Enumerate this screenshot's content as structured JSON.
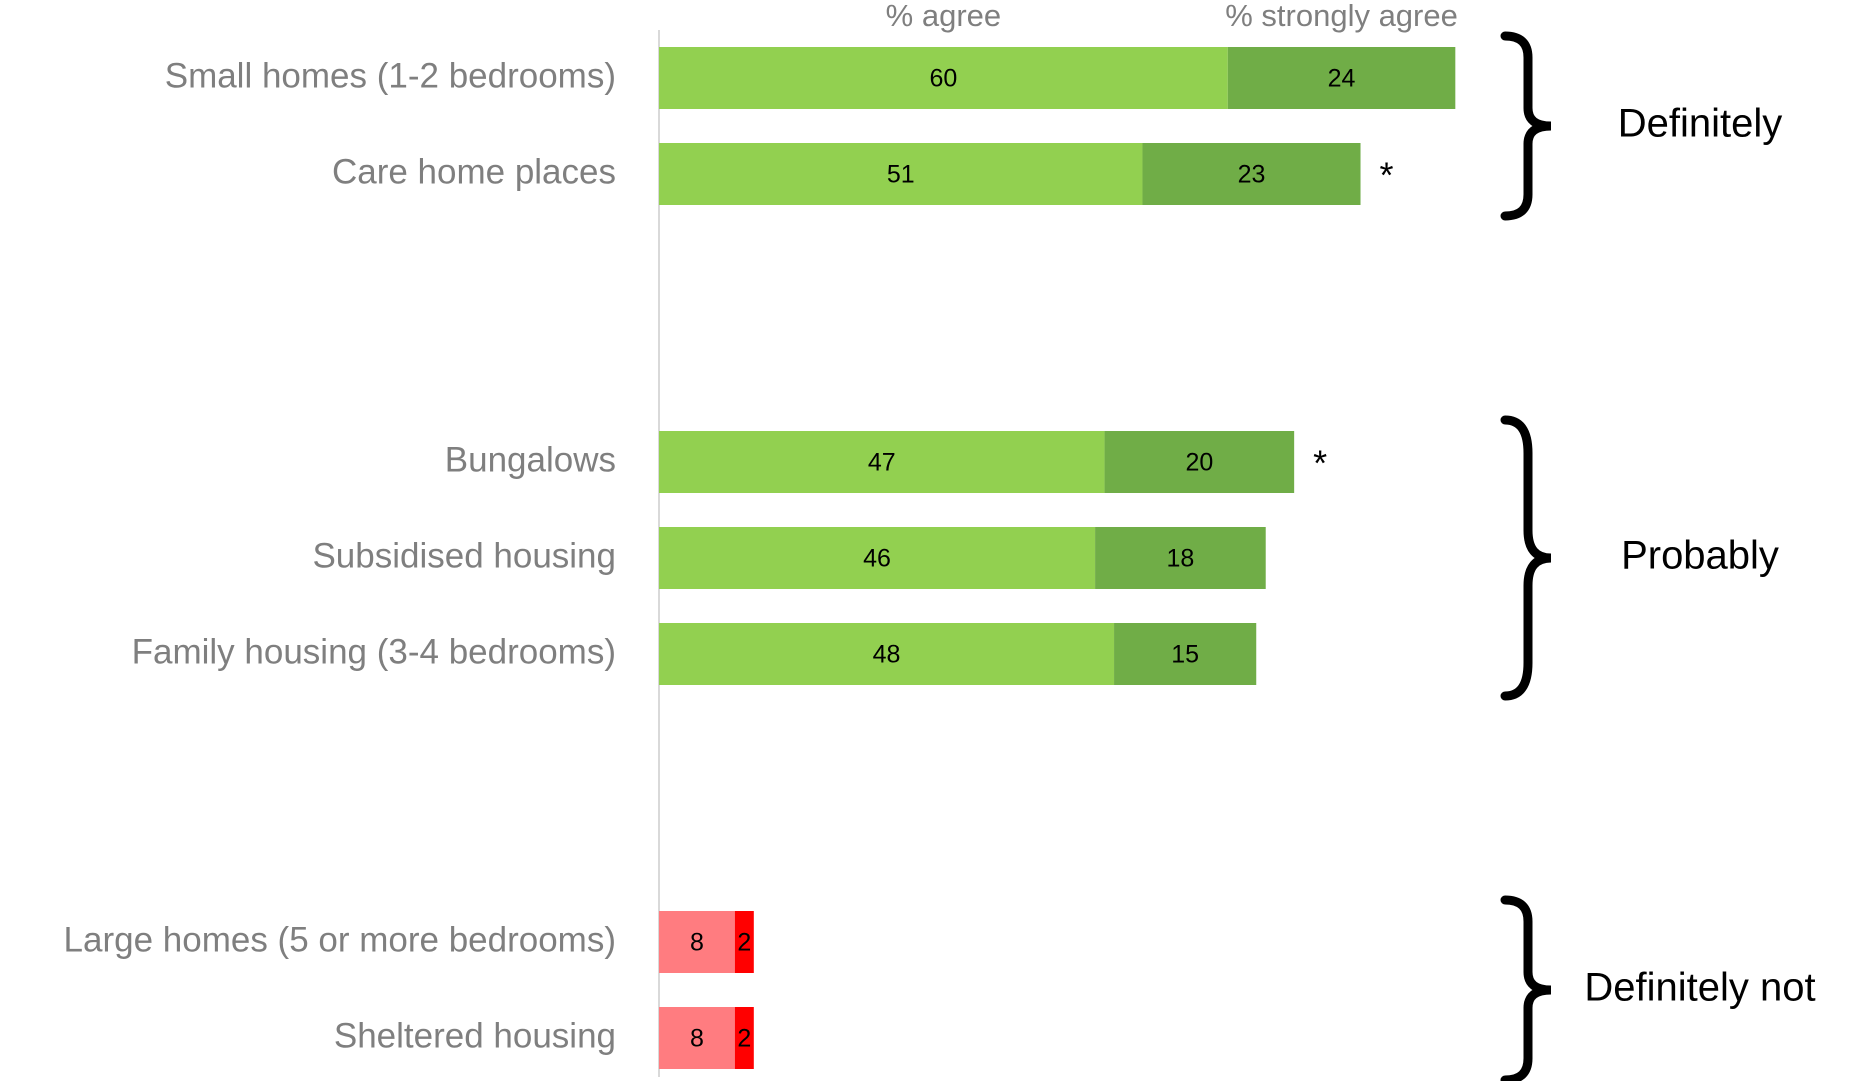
{
  "chart_data": {
    "type": "stacked-bar-horizontal",
    "categories": [
      "Small homes (1-2 bedrooms)",
      "Care home places",
      null,
      null,
      "Bungalows",
      "Subsidised housing",
      "Family housing (3-4 bedrooms)",
      null,
      null,
      "Large homes (5 or more bedrooms)",
      "Sheltered housing"
    ],
    "series": [
      {
        "name": "% agree",
        "values": [
          60,
          51,
          null,
          null,
          47,
          46,
          48,
          null,
          null,
          8,
          8
        ],
        "colors": [
          "#92d050",
          "#92d050",
          null,
          null,
          "#92d050",
          "#92d050",
          "#92d050",
          null,
          null,
          "#ff7c80",
          "#ff7c80"
        ]
      },
      {
        "name": "% strongly agree",
        "values": [
          24,
          23,
          null,
          null,
          20,
          18,
          15,
          null,
          null,
          2,
          2
        ],
        "colors": [
          "#70ad47",
          "#70ad47",
          null,
          null,
          "#70ad47",
          "#70ad47",
          "#70ad47",
          null,
          null,
          "#ff0000",
          "#ff0000"
        ]
      }
    ],
    "xlim": [
      0,
      100
    ],
    "annotations": [
      {
        "text": "*",
        "row": 1
      },
      {
        "text": "*",
        "row": 4
      }
    ],
    "groups": [
      {
        "label": "Definitely",
        "rows": [
          0,
          1
        ]
      },
      {
        "label": "Probably",
        "rows": [
          4,
          6
        ]
      },
      {
        "label": "Definitely not",
        "rows": [
          9,
          10
        ]
      }
    ]
  }
}
